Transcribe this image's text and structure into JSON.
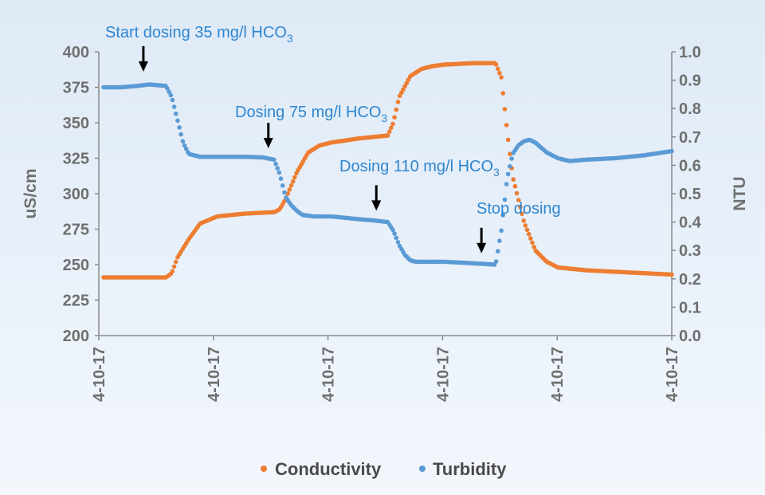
{
  "chart_data": {
    "type": "scatter",
    "title": "",
    "xlabel": "",
    "ylabel_left": "uS/cm",
    "ylabel_right": "NTU",
    "ylim_left": [
      200,
      400
    ],
    "ylim_right": [
      0.0,
      1.0
    ],
    "yticks_left": [
      "200",
      "225",
      "250",
      "275",
      "300",
      "325",
      "350",
      "375",
      "400"
    ],
    "yticks_right": [
      "0.0",
      "0.1",
      "0.2",
      "0.3",
      "0.4",
      "0.5",
      "0.6",
      "0.7",
      "0.8",
      "0.9",
      "1.0"
    ],
    "xticks": [
      "4-10-17",
      "4-10-17",
      "4-10-17",
      "4-10-17",
      "4-10-17",
      "4-10-17"
    ],
    "xlim": [
      0,
      100
    ],
    "grid": false,
    "legend_position": "bottom",
    "colors": {
      "conductivity": "#ed7d31",
      "turbidity": "#5b9bd5",
      "axis": "#7f7f7f",
      "annotation": "#2e86d0",
      "arrow": "#000000"
    },
    "series": [
      {
        "name": "Conductivity",
        "axis": "left",
        "x": [
          0,
          6,
          11,
          12,
          13,
          15,
          17,
          20,
          25,
          30,
          31,
          32,
          34,
          36,
          38,
          40,
          45,
          50,
          51,
          52,
          54,
          56,
          58,
          60,
          65,
          69,
          70,
          71,
          72,
          74,
          76,
          78,
          80,
          85,
          90,
          95,
          100
        ],
        "values": [
          241,
          241,
          241,
          244,
          255,
          268,
          279,
          284,
          286,
          287,
          289,
          296,
          315,
          329,
          334,
          336,
          339,
          341,
          350,
          368,
          383,
          388,
          390,
          391,
          392,
          392,
          382,
          345,
          312,
          280,
          260,
          252,
          248,
          246,
          245,
          244,
          243
        ]
      },
      {
        "name": "Turbidity",
        "axis": "right",
        "x": [
          0,
          3,
          6,
          8,
          11,
          12,
          13,
          14,
          15,
          17,
          20,
          25,
          28,
          30,
          31,
          32,
          33,
          34,
          35,
          37,
          40,
          45,
          48,
          50,
          51,
          52,
          53,
          54,
          55,
          57,
          60,
          65,
          69,
          70,
          71,
          72,
          73,
          74,
          75,
          76,
          78,
          80,
          82,
          85,
          90,
          95,
          100
        ],
        "values": [
          0.875,
          0.875,
          0.88,
          0.885,
          0.88,
          0.84,
          0.76,
          0.68,
          0.64,
          0.63,
          0.63,
          0.63,
          0.628,
          0.62,
          0.57,
          0.49,
          0.46,
          0.44,
          0.425,
          0.42,
          0.42,
          0.41,
          0.405,
          0.4,
          0.37,
          0.32,
          0.285,
          0.265,
          0.26,
          0.26,
          0.26,
          0.255,
          0.25,
          0.37,
          0.55,
          0.64,
          0.67,
          0.685,
          0.69,
          0.68,
          0.645,
          0.625,
          0.615,
          0.62,
          0.625,
          0.635,
          0.65
        ]
      }
    ],
    "annotations": [
      {
        "text": "Start dosing 35 mg/l HCO",
        "sub": "3",
        "arrow_x": 7,
        "arrow_y": 0.93
      },
      {
        "text": "Dosing 75 mg/l HCO",
        "sub": "3",
        "arrow_x": 29,
        "arrow_y": 0.66
      },
      {
        "text": "Dosing 110 mg/l HCO",
        "sub": "3",
        "arrow_x": 48,
        "arrow_y": 0.44
      },
      {
        "text": "Stop dosing",
        "sub": "",
        "arrow_x": 66.5,
        "arrow_y": 0.29
      }
    ]
  }
}
